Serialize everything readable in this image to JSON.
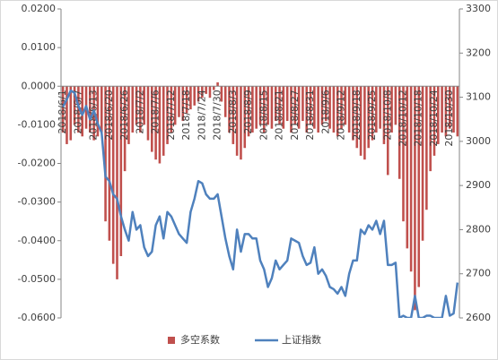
{
  "chart_data": {
    "type": "bar_line",
    "categories": [
      "2018/6/1",
      null,
      null,
      null,
      "2018/6/7",
      null,
      null,
      null,
      "2018/6/13",
      null,
      null,
      null,
      "2018/6/20",
      null,
      null,
      null,
      "2018/6/26",
      null,
      null,
      null,
      "2018/7/2",
      null,
      null,
      null,
      "2018/7/6",
      null,
      null,
      null,
      "2018/7/12",
      null,
      null,
      null,
      "2018/7/18",
      null,
      null,
      null,
      "2018/7/24",
      null,
      null,
      null,
      "2018/7/30",
      null,
      null,
      null,
      "2018/8/3",
      null,
      null,
      null,
      "2018/8/9",
      null,
      null,
      null,
      "2018/8/15",
      null,
      null,
      null,
      "2018/8/21",
      null,
      null,
      null,
      "2018/8/27",
      null,
      null,
      null,
      "2018/8/31",
      null,
      null,
      null,
      "2018/9/6",
      null,
      null,
      null,
      "2018/9/12",
      null,
      null,
      null,
      "2018/9/18",
      null,
      null,
      null,
      "2018/9/25",
      null,
      null,
      null,
      "2018/10/8",
      null,
      null,
      null,
      "2018/10/12",
      null,
      null,
      null,
      "2018/10/18",
      null,
      null,
      null,
      "2018/10/24",
      null,
      null,
      null,
      "2018/10/30",
      null,
      null
    ],
    "series": [
      {
        "name": "多空系数",
        "color": "#c0504d",
        "type": "bar",
        "values": [
          -0.012,
          -0.015,
          -0.014,
          -0.01,
          -0.012,
          -0.013,
          -0.011,
          -0.012,
          -0.014,
          -0.013,
          -0.012,
          -0.035,
          -0.04,
          -0.046,
          -0.05,
          -0.044,
          -0.022,
          -0.015,
          -0.012,
          -0.01,
          -0.012,
          -0.01,
          -0.014,
          -0.017,
          -0.019,
          -0.02,
          -0.018,
          -0.015,
          -0.012,
          -0.01,
          -0.008,
          -0.009,
          -0.007,
          -0.006,
          -0.005,
          -0.004,
          -0.003,
          -0.002,
          -0.003,
          -0.001,
          0.001,
          -0.004,
          -0.008,
          -0.012,
          -0.015,
          -0.018,
          -0.019,
          -0.016,
          -0.013,
          -0.012,
          -0.011,
          -0.01,
          -0.012,
          -0.01,
          -0.011,
          -0.009,
          -0.01,
          -0.011,
          -0.009,
          -0.012,
          -0.01,
          -0.011,
          -0.009,
          -0.012,
          -0.01,
          -0.011,
          -0.012,
          -0.01,
          -0.009,
          -0.011,
          -0.012,
          -0.013,
          -0.011,
          -0.01,
          -0.012,
          -0.014,
          -0.016,
          -0.018,
          -0.019,
          -0.016,
          -0.014,
          -0.012,
          -0.011,
          -0.015,
          -0.023,
          -0.012,
          -0.01,
          -0.024,
          -0.035,
          -0.042,
          -0.048,
          -0.058,
          -0.052,
          -0.04,
          -0.032,
          -0.022,
          -0.018,
          -0.015,
          -0.012,
          -0.013,
          -0.011,
          -0.012,
          -0.013
        ]
      },
      {
        "name": "上证指数",
        "color": "#4f81bd",
        "type": "line",
        "axis": "y2",
        "values": [
          3078,
          3095,
          3115,
          3110,
          3080,
          3060,
          3080,
          3050,
          3070,
          3040,
          3020,
          2920,
          2910,
          2880,
          2870,
          2830,
          2800,
          2775,
          2840,
          2800,
          2810,
          2760,
          2740,
          2750,
          2810,
          2830,
          2780,
          2840,
          2830,
          2810,
          2790,
          2780,
          2770,
          2840,
          2870,
          2910,
          2905,
          2880,
          2870,
          2870,
          2880,
          2830,
          2780,
          2740,
          2710,
          2800,
          2750,
          2790,
          2790,
          2780,
          2780,
          2730,
          2710,
          2670,
          2690,
          2730,
          2710,
          2720,
          2730,
          2780,
          2775,
          2770,
          2740,
          2720,
          2725,
          2760,
          2700,
          2710,
          2695,
          2670,
          2665,
          2655,
          2670,
          2650,
          2700,
          2730,
          2730,
          2800,
          2790,
          2810,
          2800,
          2820,
          2790,
          2820,
          2720,
          2720,
          2725,
          2600,
          2605,
          2600,
          2600,
          2650,
          2600,
          2600,
          2605,
          2605,
          2600,
          2600,
          2600,
          2650,
          2605,
          2610,
          2680
        ]
      }
    ],
    "ylim": [
      -0.06,
      0.02
    ],
    "yticks": [
      {
        "value": -0.06,
        "label": "-0.0600"
      },
      {
        "value": -0.05,
        "label": "-0.0500"
      },
      {
        "value": -0.04,
        "label": "-0.0400"
      },
      {
        "value": -0.03,
        "label": "-0.0300"
      },
      {
        "value": -0.02,
        "label": "-0.0200"
      },
      {
        "value": -0.01,
        "label": "-0.0100"
      },
      {
        "value": 0,
        "label": "0.0000"
      },
      {
        "value": 0.01,
        "label": "0.0100"
      },
      {
        "value": 0.02,
        "label": "0.0200"
      }
    ],
    "y2lim": [
      2600,
      3300
    ],
    "y2ticks": [
      2600,
      2700,
      2800,
      2900,
      3000,
      3100,
      3200,
      3300
    ],
    "legend": "bottom"
  }
}
